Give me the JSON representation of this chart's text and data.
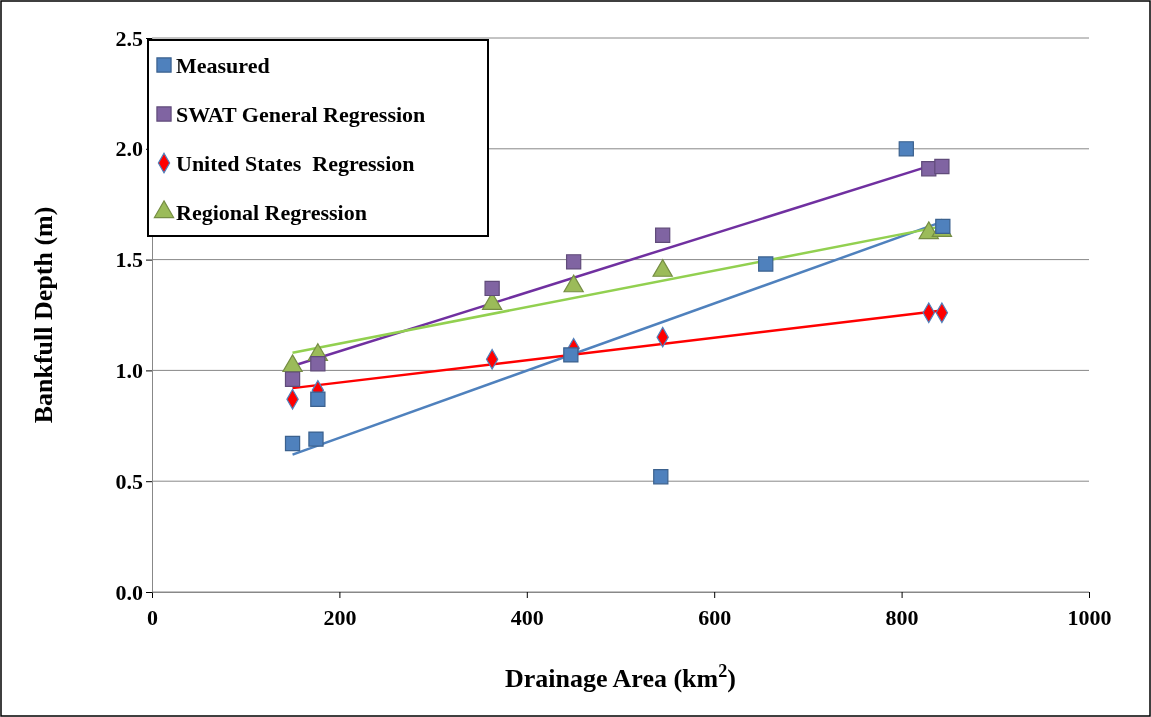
{
  "chart_data": {
    "type": "scatter",
    "xlabel": "Drainage Area (km$^{2}$)",
    "ylabel": "Bankfull Depth (m)",
    "xlim": [
      0,
      1000
    ],
    "xticks": [
      0,
      200,
      400,
      600,
      800,
      1000
    ],
    "ylim": [
      0,
      2.5
    ],
    "yticks": [
      {
        "value": 0,
        "label": "0.0"
      },
      {
        "value": 0.5,
        "label": "0.5"
      },
      {
        "value": 1,
        "label": "1.0"
      },
      {
        "value": 1.5,
        "label": "1.5"
      },
      {
        "value": 2,
        "label": "2.0"
      },
      {
        "value": 2.5,
        "label": "2.5"
      }
    ],
    "grid": "y",
    "legend": "top left",
    "series": [
      {
        "name": "Measured",
        "color": "#4f81bd",
        "marker": "square",
        "x": [
          150,
          175,
          177,
          447,
          543,
          655,
          805,
          844
        ],
        "values": [
          0.67,
          0.69,
          0.87,
          1.07,
          0.52,
          1.48,
          2.0,
          1.65
        ]
      },
      {
        "name": "SWAT General Regression",
        "color": "#8064a2",
        "marker": "square",
        "x": [
          150,
          177,
          363,
          450,
          545,
          829,
          843
        ],
        "values": [
          0.96,
          1.03,
          1.37,
          1.49,
          1.61,
          1.91,
          1.92
        ]
      },
      {
        "name": "United States  Regression",
        "color": "#ff0000",
        "marker": "diamond",
        "x": [
          150,
          177,
          363,
          450,
          545,
          829,
          843
        ],
        "values": [
          0.87,
          0.91,
          1.05,
          1.1,
          1.15,
          1.26,
          1.26
        ]
      },
      {
        "name": "Regional Regression",
        "color": "#9bbb59",
        "marker": "triangle",
        "x": [
          150,
          177,
          363,
          450,
          545,
          829,
          843
        ],
        "values": [
          1.02,
          1.07,
          1.3,
          1.38,
          1.45,
          1.62,
          1.63
        ]
      },
      {
        "type": "line",
        "color": "#4f81bd",
        "marker": "none",
        "x": [
          150,
          843
        ],
        "values": [
          0.62,
          1.67
        ]
      },
      {
        "type": "line",
        "color": "#7030a0",
        "marker": "none",
        "x": [
          150,
          843
        ],
        "values": [
          1.02,
          1.94
        ]
      },
      {
        "type": "line",
        "color": "#ff0000",
        "marker": "none",
        "x": [
          150,
          843
        ],
        "values": [
          0.92,
          1.27
        ]
      },
      {
        "type": "line",
        "color": "#92d050",
        "marker": "none",
        "x": [
          150,
          843
        ],
        "values": [
          1.08,
          1.65
        ]
      }
    ]
  }
}
